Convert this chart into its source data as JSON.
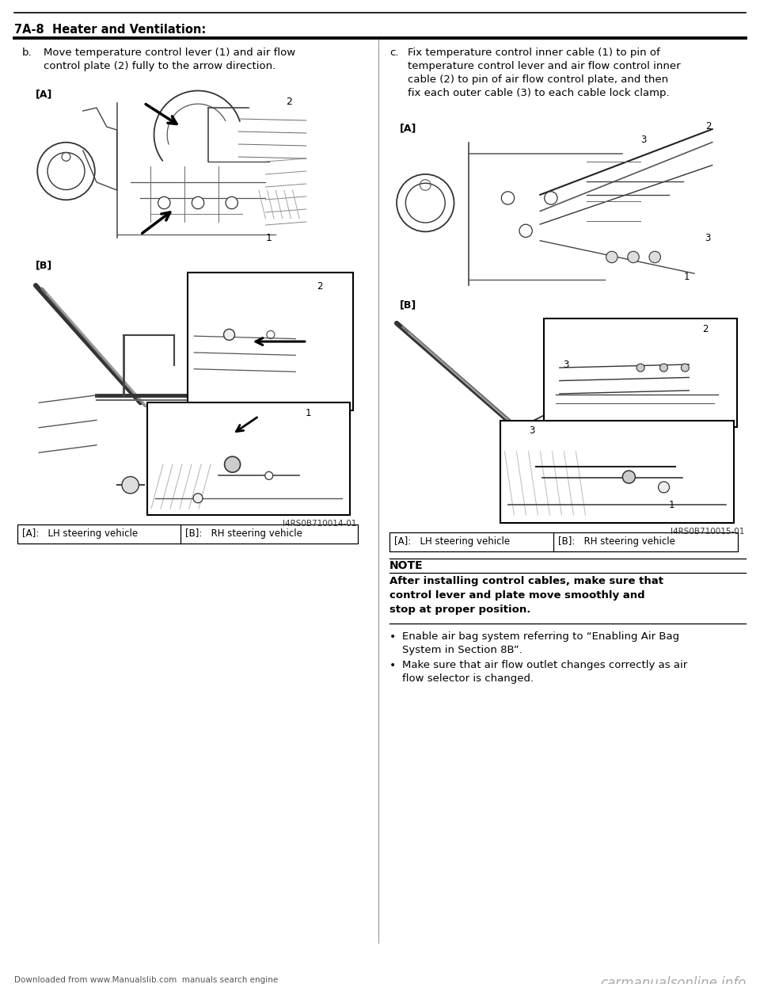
{
  "page_title": "7A-8  Heater and Ventilation:",
  "footer_left": "Downloaded from www.Manualslib.com  manuals search engine",
  "footer_right": "carmanualsonline.info",
  "section_b_header_b": "b.",
  "section_b_header_text": "Move temperature control lever (1) and air flow\ncontrol plate (2) fully to the arrow direction.",
  "section_c_header_c": "c.",
  "section_c_header_text": "Fix temperature control inner cable (1) to pin of\ntemperature control lever and air flow control inner\ncable (2) to pin of air flow control plate, and then\nfix each outer cable (3) to each cable lock clamp.",
  "label_A": "[A]",
  "label_B": "[B]",
  "fig_id_left": "I4RS0B710014-01",
  "fig_id_right": "I4RS0B710015-01",
  "table_col1": "[A]:   LH steering vehicle",
  "table_col2": "[B]:   RH steering vehicle",
  "note_title": "NOTE",
  "note_body_line1": "After installing control cables, make sure that",
  "note_body_line2": "control lever and plate move smoothly and",
  "note_body_line3": "stop at proper position.",
  "bullet1_line1": "Enable air bag system referring to “Enabling Air Bag",
  "bullet1_line2": "System in Section 8B”.",
  "bullet2_line1": "Make sure that air flow outlet changes correctly as air",
  "bullet2_line2": "flow selector is changed.",
  "bg_color": "#ffffff",
  "text_color": "#000000",
  "line_color": "#000000",
  "gray_line": "#888888",
  "light_gray": "#cccccc"
}
